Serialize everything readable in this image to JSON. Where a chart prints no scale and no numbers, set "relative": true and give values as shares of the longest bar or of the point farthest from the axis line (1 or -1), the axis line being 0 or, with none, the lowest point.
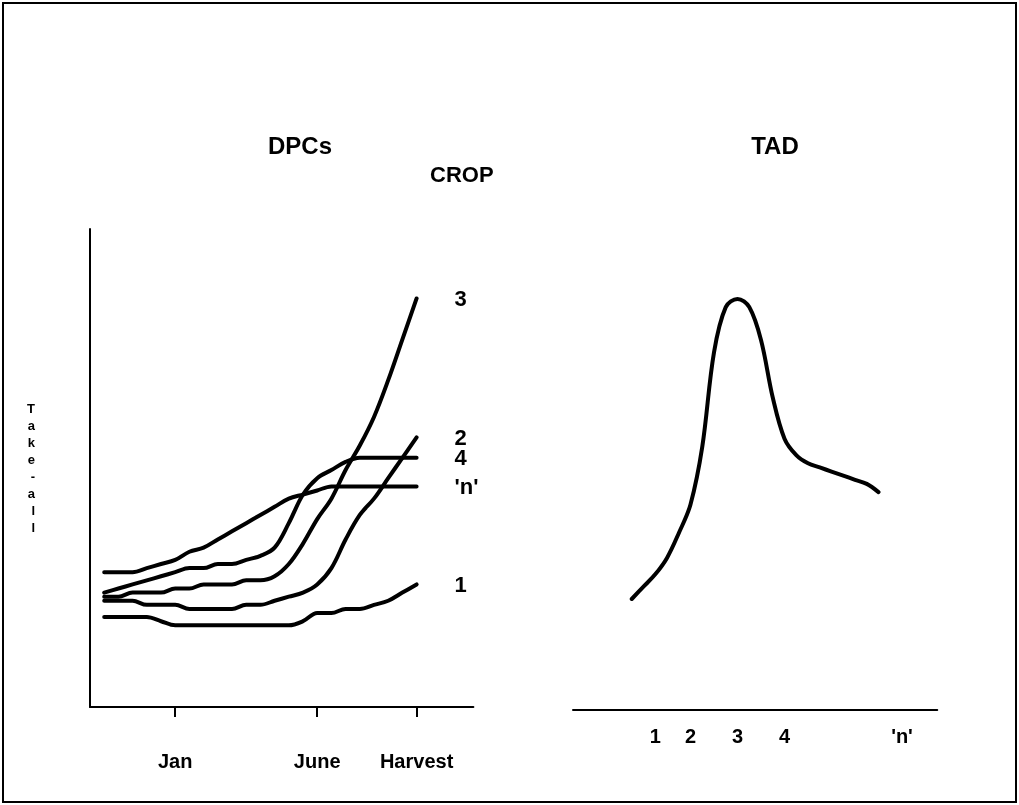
{
  "chart_data": [
    {
      "type": "line",
      "title": "DPCs",
      "ylabel": "Take-all",
      "legend_title": "CROP",
      "relative": true,
      "marker": "none",
      "categories": [
        null,
        null,
        null,
        null,
        null,
        null,
        "Jan",
        null,
        null,
        null,
        null,
        null,
        null,
        null,
        null,
        null,
        "June",
        null,
        null,
        null,
        null,
        null,
        null,
        "Harvest",
        null,
        null,
        null,
        null
      ],
      "series": [
        {
          "name": "3",
          "color": "#000000",
          "values": [
            null,
            0.27,
            0.27,
            0.28,
            0.28,
            0.28,
            0.29,
            0.29,
            0.3,
            0.3,
            0.3,
            0.31,
            0.31,
            0.32,
            0.35,
            0.4,
            0.46,
            0.51,
            0.58,
            0.64,
            0.71,
            0.8,
            0.9,
            1.0,
            null,
            null,
            null,
            null
          ]
        },
        {
          "name": "2",
          "color": "#000000",
          "values": [
            null,
            0.26,
            0.26,
            0.26,
            0.25,
            0.25,
            0.25,
            0.24,
            0.24,
            0.24,
            0.24,
            0.25,
            0.25,
            0.26,
            0.27,
            0.28,
            0.3,
            0.34,
            0.41,
            0.47,
            0.51,
            0.56,
            0.61,
            0.66,
            null,
            null,
            null,
            null
          ]
        },
        {
          "name": "4",
          "color": "#000000",
          "values": [
            null,
            0.28,
            0.29,
            0.3,
            0.31,
            0.32,
            0.33,
            0.34,
            0.34,
            0.35,
            0.35,
            0.36,
            0.37,
            0.39,
            0.45,
            0.52,
            0.56,
            0.58,
            0.6,
            0.61,
            0.61,
            0.61,
            0.61,
            0.61,
            null,
            null,
            null,
            null
          ]
        },
        {
          "name": "'n'",
          "color": "#000000",
          "values": [
            null,
            0.33,
            0.33,
            0.33,
            0.34,
            0.35,
            0.36,
            0.38,
            0.39,
            0.41,
            0.43,
            0.45,
            0.47,
            0.49,
            0.51,
            0.52,
            0.53,
            0.54,
            0.54,
            0.54,
            0.54,
            0.54,
            0.54,
            0.54,
            null,
            null,
            null,
            null
          ]
        },
        {
          "name": "1",
          "color": "#000000",
          "values": [
            null,
            0.22,
            0.22,
            0.22,
            0.22,
            0.21,
            0.2,
            0.2,
            0.2,
            0.2,
            0.2,
            0.2,
            0.2,
            0.2,
            0.2,
            0.21,
            0.23,
            0.23,
            0.24,
            0.24,
            0.25,
            0.26,
            0.28,
            0.3,
            null,
            null,
            null,
            null
          ]
        }
      ]
    },
    {
      "type": "line",
      "title": "TAD",
      "relative": true,
      "marker": "none",
      "categories": [
        null,
        null,
        null,
        null,
        null,
        null,
        null,
        "1",
        null,
        null,
        "2",
        null,
        null,
        null,
        "3",
        null,
        null,
        null,
        "4",
        null,
        null,
        null,
        null,
        null,
        null,
        null,
        null,
        null,
        "'n'",
        null,
        null,
        null
      ],
      "series": [
        {
          "color": "#000000",
          "values": [
            null,
            null,
            null,
            null,
            null,
            0.27,
            0.3,
            0.33,
            0.37,
            0.43,
            0.5,
            0.64,
            0.87,
            0.98,
            1.0,
            0.98,
            0.9,
            0.76,
            0.66,
            0.62,
            0.6,
            0.59,
            0.58,
            0.57,
            0.56,
            0.55,
            0.53,
            null,
            null,
            null,
            null,
            null
          ]
        }
      ]
    }
  ]
}
